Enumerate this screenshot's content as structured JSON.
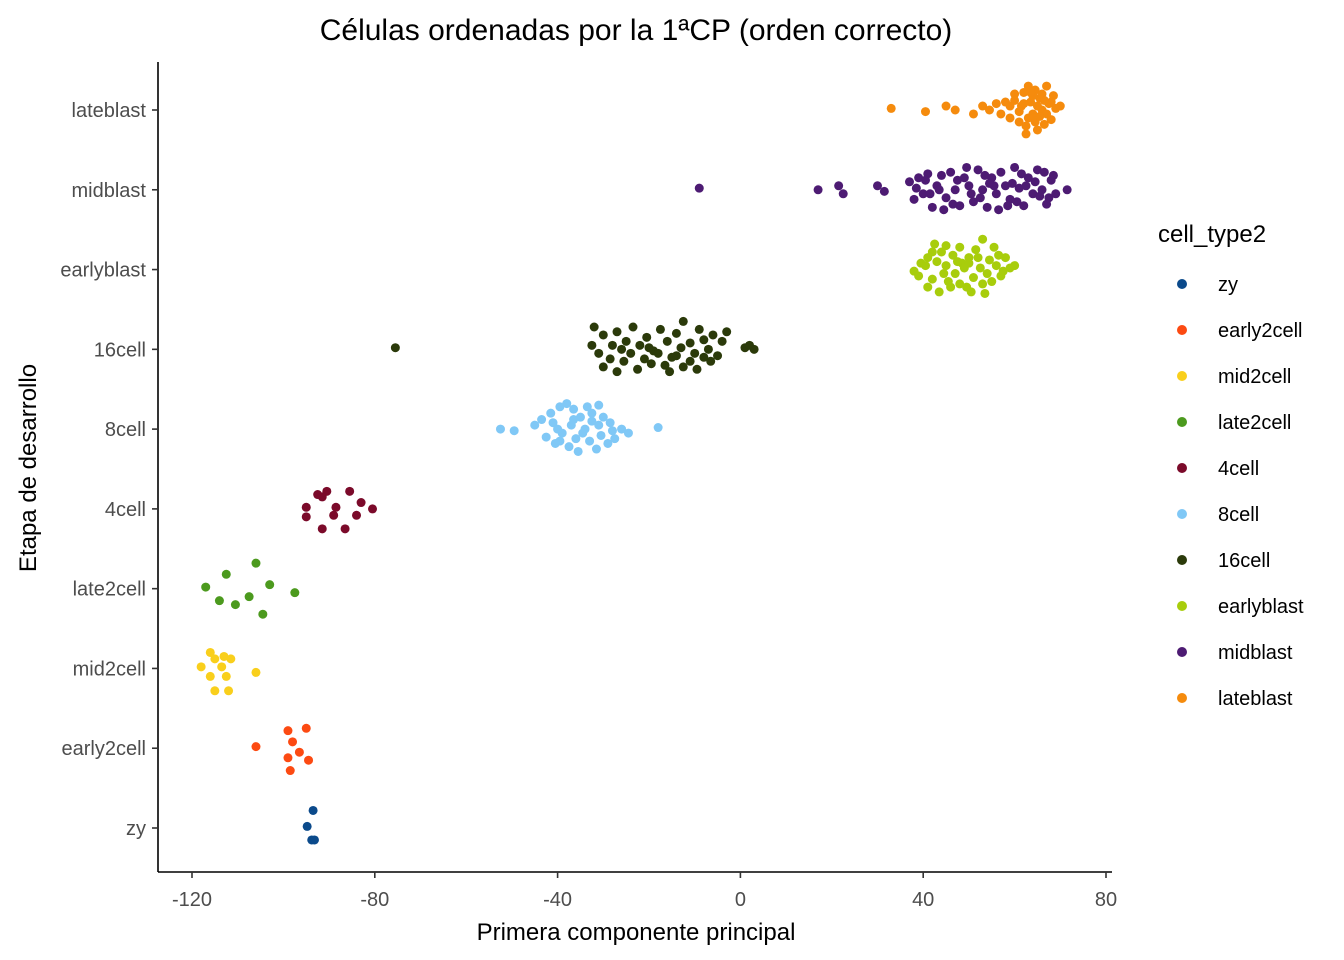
{
  "chart_data": {
    "type": "scatter",
    "title": "Células ordenadas por la 1ªCP (orden correcto)",
    "xlabel": "Primera componente principal",
    "ylabel": "Etapa de desarrollo",
    "xlim": [
      -128,
      80
    ],
    "x_ticks": [
      "-120",
      "-80",
      "-40",
      "0",
      "40",
      "80"
    ],
    "categories": [
      "zy",
      "early2cell",
      "mid2cell",
      "late2cell",
      "4cell",
      "8cell",
      "16cell",
      "earlyblast",
      "midblast",
      "lateblast"
    ],
    "legend": {
      "title": "cell_type2",
      "position": "right",
      "entries": [
        "zy",
        "early2cell",
        "mid2cell",
        "late2cell",
        "4cell",
        "8cell",
        "16cell",
        "earlyblast",
        "midblast",
        "lateblast"
      ]
    },
    "grid": false,
    "colors": {
      "zy": "#0b4a8b",
      "early2cell": "#fc4a12",
      "mid2cell": "#f9cf1c",
      "late2cell": "#4c9a1e",
      "4cell": "#7b0a2a",
      "8cell": "#80c8f6",
      "16cell": "#2b3a0a",
      "earlyblast": "#a8cd0c",
      "midblast": "#4d1b73",
      "lateblast": "#f58b0d"
    },
    "series": [
      {
        "name": "zy",
        "points": [
          [
            -93.5,
            0.22
          ],
          [
            -94.8,
            0.02
          ],
          [
            -93.8,
            -0.15
          ],
          [
            -93.2,
            -0.15
          ]
        ]
      },
      {
        "name": "early2cell",
        "points": [
          [
            -106,
            0.02
          ],
          [
            -99,
            0.22
          ],
          [
            -95,
            0.25
          ],
          [
            -98,
            0.08
          ],
          [
            -96.5,
            -0.05
          ],
          [
            -94.5,
            -0.15
          ],
          [
            -99,
            -0.12
          ],
          [
            -98.5,
            -0.28
          ]
        ]
      },
      {
        "name": "mid2cell",
        "points": [
          [
            -116,
            0.2
          ],
          [
            -115,
            0.12
          ],
          [
            -113,
            0.15
          ],
          [
            -111.5,
            0.12
          ],
          [
            -118,
            0.02
          ],
          [
            -116,
            -0.1
          ],
          [
            -113.5,
            0.02
          ],
          [
            -112.5,
            -0.1
          ],
          [
            -106,
            -0.05
          ],
          [
            -115,
            -0.28
          ],
          [
            -112,
            -0.28
          ]
        ]
      },
      {
        "name": "late2cell",
        "points": [
          [
            -117,
            0.02
          ],
          [
            -114,
            -0.15
          ],
          [
            -112.5,
            0.18
          ],
          [
            -110.5,
            -0.2
          ],
          [
            -107.5,
            -0.1
          ],
          [
            -106,
            0.32
          ],
          [
            -104.5,
            -0.32
          ],
          [
            -103,
            0.05
          ],
          [
            -97.5,
            -0.05
          ]
        ]
      },
      {
        "name": "4cell",
        "points": [
          [
            -92.5,
            0.18
          ],
          [
            -90.5,
            0.22
          ],
          [
            -88.5,
            0.02
          ],
          [
            -85.5,
            0.22
          ],
          [
            -84,
            -0.08
          ],
          [
            -95,
            0.02
          ],
          [
            -95,
            -0.1
          ],
          [
            -91.5,
            -0.25
          ],
          [
            -89,
            -0.08
          ],
          [
            -86.5,
            -0.25
          ],
          [
            -83,
            0.08
          ],
          [
            -80.5,
            0.0
          ],
          [
            -91.5,
            0.15
          ]
        ]
      },
      {
        "name": "8cell",
        "points": [
          [
            -52.5,
            0.0
          ],
          [
            -49.5,
            -0.02
          ],
          [
            -45,
            0.05
          ],
          [
            -43.5,
            0.12
          ],
          [
            -41.5,
            0.2
          ],
          [
            -39.5,
            0.28
          ],
          [
            -38,
            0.32
          ],
          [
            -36.5,
            0.25
          ],
          [
            -35,
            0.15
          ],
          [
            -33.5,
            0.28
          ],
          [
            -32.5,
            0.2
          ],
          [
            -31,
            0.3
          ],
          [
            -30,
            0.15
          ],
          [
            -28.5,
            0.08
          ],
          [
            -26,
            0.0
          ],
          [
            -24.5,
            -0.05
          ],
          [
            -18,
            0.02
          ],
          [
            -42.5,
            -0.1
          ],
          [
            -40.5,
            -0.18
          ],
          [
            -39,
            -0.05
          ],
          [
            -37.5,
            -0.22
          ],
          [
            -36,
            -0.12
          ],
          [
            -34.5,
            -0.05
          ],
          [
            -33,
            -0.15
          ],
          [
            -31.5,
            -0.25
          ],
          [
            -30.5,
            -0.08
          ],
          [
            -29,
            -0.18
          ],
          [
            -27.5,
            -0.12
          ],
          [
            -40,
            0.0
          ],
          [
            -37,
            0.05
          ],
          [
            -34,
            0.0
          ],
          [
            -31,
            0.05
          ],
          [
            -28,
            -0.02
          ],
          [
            -41,
            0.08
          ],
          [
            -35.5,
            -0.28
          ],
          [
            -39.5,
            -0.15
          ],
          [
            -32.5,
            0.1
          ],
          [
            -36.5,
            0.12
          ]
        ]
      },
      {
        "name": "16cell",
        "points": [
          [
            -75.5,
            0.02
          ],
          [
            -32,
            0.28
          ],
          [
            -30,
            0.18
          ],
          [
            -28,
            0.05
          ],
          [
            -27,
            0.22
          ],
          [
            -25,
            0.1
          ],
          [
            -23.5,
            0.28
          ],
          [
            -22,
            0.05
          ],
          [
            -20.5,
            0.15
          ],
          [
            -19,
            -0.02
          ],
          [
            -17.5,
            0.25
          ],
          [
            -16,
            0.1
          ],
          [
            -15,
            -0.1
          ],
          [
            -14,
            0.2
          ],
          [
            -12.5,
            0.35
          ],
          [
            -11,
            0.08
          ],
          [
            -10,
            -0.05
          ],
          [
            -9,
            0.25
          ],
          [
            -8,
            0.12
          ],
          [
            -7,
            0.0
          ],
          [
            -6,
            0.18
          ],
          [
            -5,
            -0.08
          ],
          [
            -4,
            0.1
          ],
          [
            -3,
            0.22
          ],
          [
            -31,
            -0.05
          ],
          [
            -30,
            -0.22
          ],
          [
            -28.5,
            -0.12
          ],
          [
            -27,
            -0.28
          ],
          [
            -25.5,
            -0.15
          ],
          [
            -24,
            -0.05
          ],
          [
            -22.5,
            -0.25
          ],
          [
            -21,
            -0.12
          ],
          [
            -19.5,
            -0.18
          ],
          [
            -18,
            -0.05
          ],
          [
            -16.5,
            -0.2
          ],
          [
            -15.5,
            -0.28
          ],
          [
            -14,
            -0.08
          ],
          [
            -12.5,
            -0.22
          ],
          [
            -11,
            -0.15
          ],
          [
            -9.5,
            -0.25
          ],
          [
            -8,
            -0.1
          ],
          [
            -6.5,
            -0.15
          ],
          [
            1,
            0.02
          ],
          [
            2,
            0.05
          ],
          [
            3,
            0.0
          ],
          [
            -32.5,
            0.05
          ],
          [
            -26,
            0.0
          ],
          [
            -20,
            0.02
          ],
          [
            -13,
            0.02
          ]
        ]
      },
      {
        "name": "earlyblast",
        "points": [
          [
            38,
            -0.02
          ],
          [
            39.5,
            0.08
          ],
          [
            41,
            0.15
          ],
          [
            42,
            -0.12
          ],
          [
            42.5,
            0.32
          ],
          [
            43.5,
            -0.28
          ],
          [
            44,
            0.22
          ],
          [
            45,
            0.05
          ],
          [
            45.5,
            -0.15
          ],
          [
            46.5,
            0.18
          ],
          [
            47,
            -0.05
          ],
          [
            48,
            0.28
          ],
          [
            48.5,
            0.08
          ],
          [
            49.5,
            -0.22
          ],
          [
            50,
            0.15
          ],
          [
            51,
            -0.1
          ],
          [
            51.5,
            0.25
          ],
          [
            52.5,
            0.02
          ],
          [
            53,
            0.38
          ],
          [
            53.5,
            -0.3
          ],
          [
            54.5,
            0.12
          ],
          [
            55,
            -0.15
          ],
          [
            56,
            0.05
          ],
          [
            57,
            -0.08
          ],
          [
            58,
            0.15
          ],
          [
            59,
            0.02
          ],
          [
            60,
            0.05
          ],
          [
            39,
            -0.08
          ],
          [
            41,
            -0.22
          ],
          [
            43,
            0.1
          ],
          [
            44.5,
            -0.05
          ],
          [
            46,
            -0.22
          ],
          [
            47.5,
            0.1
          ],
          [
            49,
            0.02
          ],
          [
            50.5,
            -0.28
          ],
          [
            52,
            0.15
          ],
          [
            54,
            -0.05
          ],
          [
            55.5,
            0.28
          ],
          [
            57.5,
            -0.02
          ],
          [
            40.5,
            0.05
          ],
          [
            42,
            0.22
          ],
          [
            45,
            0.3
          ],
          [
            48,
            -0.18
          ],
          [
            50,
            0.08
          ],
          [
            53,
            -0.18
          ],
          [
            56.5,
            0.18
          ]
        ]
      },
      {
        "name": "midblast",
        "points": [
          [
            -9,
            0.02
          ],
          [
            17,
            0.0
          ],
          [
            21.5,
            0.05
          ],
          [
            22.5,
            -0.05
          ],
          [
            30,
            0.05
          ],
          [
            31.5,
            -0.02
          ],
          [
            37,
            0.1
          ],
          [
            38,
            -0.12
          ],
          [
            39,
            0.15
          ],
          [
            40,
            -0.05
          ],
          [
            41,
            0.2
          ],
          [
            42,
            -0.22
          ],
          [
            43,
            0.05
          ],
          [
            44,
            0.18
          ],
          [
            45,
            -0.1
          ],
          [
            46,
            0.22
          ],
          [
            47,
            0.0
          ],
          [
            48,
            -0.2
          ],
          [
            49,
            0.15
          ],
          [
            50,
            0.05
          ],
          [
            51,
            -0.15
          ],
          [
            52,
            0.25
          ],
          [
            53,
            0.0
          ],
          [
            54,
            -0.22
          ],
          [
            55,
            0.15
          ],
          [
            56,
            -0.05
          ],
          [
            57,
            0.22
          ],
          [
            58,
            0.05
          ],
          [
            59,
            -0.12
          ],
          [
            60,
            0.28
          ],
          [
            61,
            0.02
          ],
          [
            62,
            -0.2
          ],
          [
            63,
            0.15
          ],
          [
            64,
            -0.05
          ],
          [
            65,
            0.25
          ],
          [
            66,
            0.0
          ],
          [
            67,
            -0.18
          ],
          [
            68,
            0.12
          ],
          [
            69,
            -0.05
          ],
          [
            71.5,
            0.0
          ],
          [
            38.5,
            0.02
          ],
          [
            41.5,
            -0.05
          ],
          [
            44.5,
            -0.25
          ],
          [
            47.5,
            0.12
          ],
          [
            50.5,
            -0.05
          ],
          [
            53.5,
            0.18
          ],
          [
            56.5,
            -0.25
          ],
          [
            59.5,
            0.08
          ],
          [
            62.5,
            0.05
          ],
          [
            65.5,
            -0.08
          ],
          [
            68.5,
            0.18
          ],
          [
            43.5,
            0.0
          ],
          [
            46.5,
            -0.18
          ],
          [
            49.5,
            0.28
          ],
          [
            52.5,
            -0.1
          ],
          [
            55.5,
            0.05
          ],
          [
            58.5,
            -0.2
          ],
          [
            61.5,
            0.2
          ],
          [
            64.5,
            0.1
          ],
          [
            67.5,
            -0.1
          ],
          [
            40.5,
            0.12
          ],
          [
            54.5,
            0.08
          ],
          [
            60.5,
            -0.15
          ],
          [
            66.5,
            0.22
          ]
        ]
      },
      {
        "name": "lateblast",
        "points": [
          [
            33,
            0.02
          ],
          [
            40.5,
            -0.02
          ],
          [
            45,
            0.05
          ],
          [
            47,
            0.0
          ],
          [
            51,
            -0.05
          ],
          [
            53,
            0.05
          ],
          [
            54.5,
            0.0
          ],
          [
            56,
            0.08
          ],
          [
            57,
            -0.05
          ],
          [
            58,
            0.1
          ],
          [
            59,
            -0.1
          ],
          [
            60,
            0.2
          ],
          [
            61,
            -0.15
          ],
          [
            61.5,
            0.05
          ],
          [
            62,
            0.22
          ],
          [
            62.5,
            -0.2
          ],
          [
            63,
            0.3
          ],
          [
            63.5,
            0.1
          ],
          [
            64,
            -0.05
          ],
          [
            64.5,
            0.25
          ],
          [
            65,
            -0.25
          ],
          [
            65.5,
            0.15
          ],
          [
            66,
            0.0
          ],
          [
            66.5,
            -0.18
          ],
          [
            67,
            0.3
          ],
          [
            67.5,
            0.08
          ],
          [
            68,
            -0.12
          ],
          [
            68.5,
            0.18
          ],
          [
            69,
            0.02
          ],
          [
            70,
            0.05
          ],
          [
            60,
            0.12
          ],
          [
            61,
            -0.02
          ],
          [
            62,
            0.08
          ],
          [
            63,
            -0.1
          ],
          [
            64,
            0.18
          ],
          [
            65,
            0.05
          ],
          [
            66,
            0.2
          ],
          [
            67,
            -0.05
          ],
          [
            68,
            0.1
          ],
          [
            62.5,
            -0.3
          ],
          [
            64.5,
            -0.15
          ],
          [
            66.5,
            0.12
          ],
          [
            63.5,
            0.22
          ],
          [
            65.5,
            -0.08
          ],
          [
            59,
            0.05
          ]
        ]
      }
    ]
  }
}
